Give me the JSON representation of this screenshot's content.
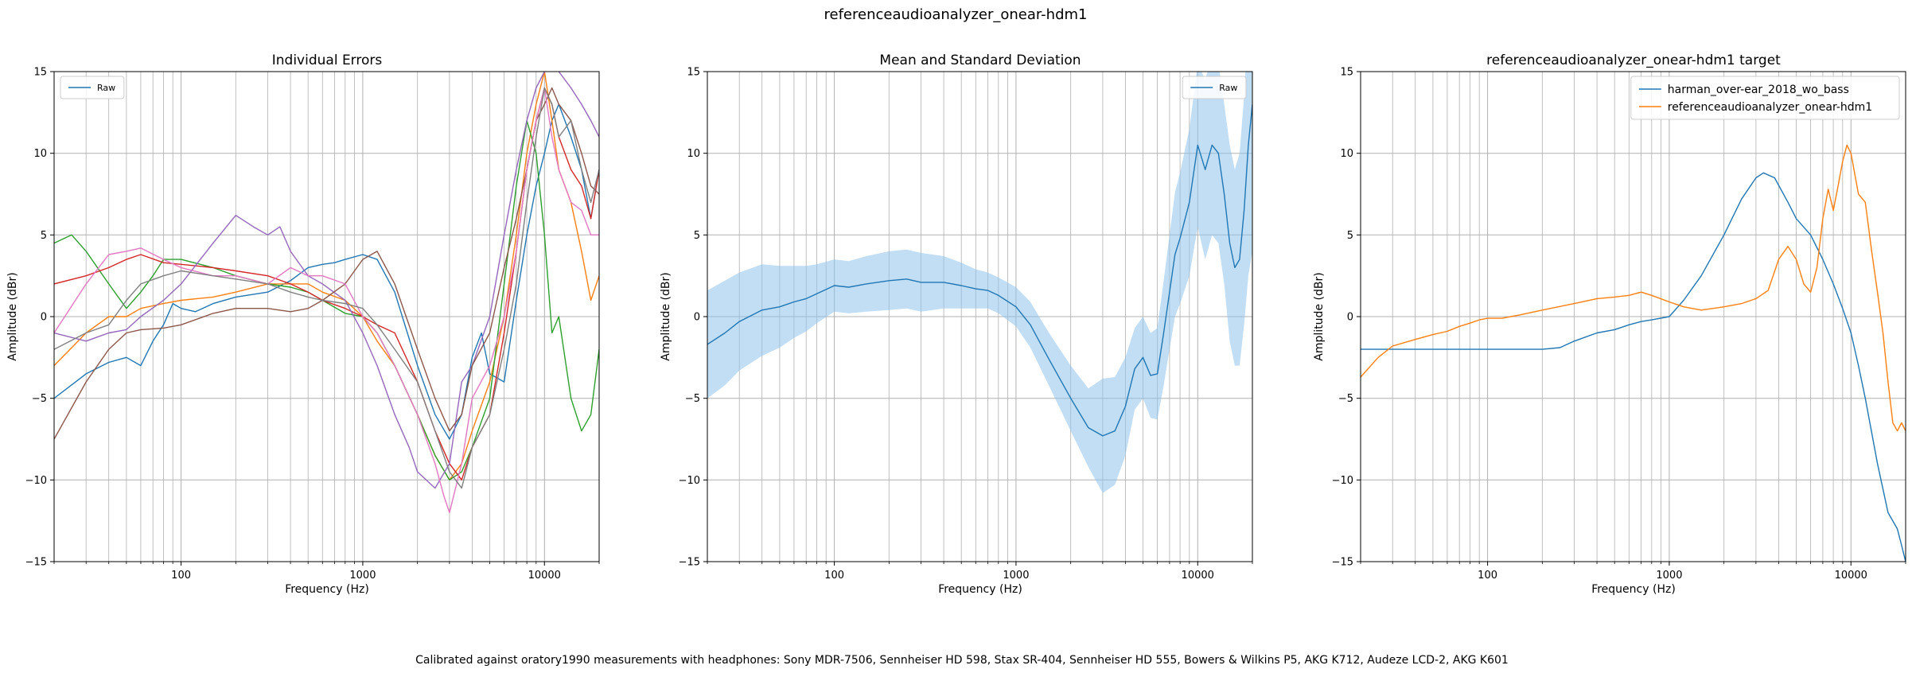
{
  "figure_title": "referenceaudioanalyzer_onear-hdm1",
  "footnote": "Calibrated against oratory1990 measurements with headphones: Sony MDR-7506, Sennheiser HD 598, Stax SR-404, Sennheiser HD 555, Bowers & Wilkins P5, AKG K712, Audeze LCD-2, AKG K601",
  "chart_data": [
    {
      "type": "line",
      "title": "Individual Errors",
      "xlabel": "Frequency (Hz)",
      "ylabel": "Amplitude (dBr)",
      "xscale": "log",
      "xlim": [
        20,
        20000
      ],
      "ylim": [
        -15,
        15
      ],
      "xticks": [
        {
          "value": 100,
          "label": "100"
        },
        {
          "value": 1000,
          "label": "1000"
        },
        {
          "value": 10000,
          "label": "10000"
        }
      ],
      "yticks": [
        -15,
        -10,
        -5,
        0,
        5,
        10,
        15
      ],
      "grid": true,
      "legend": {
        "position": "upper-left",
        "entries": [
          {
            "label": "Raw",
            "color": "#1f77b4"
          }
        ]
      },
      "series": [
        {
          "color": "#1f77b4",
          "x": [
            20,
            30,
            40,
            50,
            60,
            70,
            80,
            90,
            100,
            120,
            150,
            200,
            300,
            400,
            500,
            600,
            700,
            800,
            1000,
            1200,
            1500,
            2000,
            2500,
            3000,
            3500,
            4000,
            4500,
            5000,
            6000,
            7000,
            8000,
            9000,
            10000,
            11000,
            12000,
            14000,
            16000,
            18000,
            20000
          ],
          "y": [
            -5,
            -3.5,
            -2.8,
            -2.5,
            -3,
            -1.5,
            -0.5,
            0.8,
            0.5,
            0.3,
            0.8,
            1.2,
            1.5,
            2.2,
            3,
            3.2,
            3.3,
            3.5,
            3.8,
            3.5,
            1.5,
            -3,
            -6,
            -7.5,
            -6,
            -2.5,
            -1,
            -3.5,
            -4,
            1,
            5,
            8,
            10,
            12,
            13,
            11,
            9,
            6,
            9
          ]
        },
        {
          "color": "#ff7f0e",
          "x": [
            20,
            30,
            40,
            50,
            60,
            80,
            100,
            150,
            200,
            300,
            400,
            500,
            600,
            800,
            1000,
            1200,
            1500,
            2000,
            2500,
            3000,
            3500,
            4000,
            5000,
            6000,
            7000,
            8000,
            9000,
            10000,
            11000,
            12000,
            14000,
            16000,
            18000,
            20000
          ],
          "y": [
            -3,
            -1,
            0,
            0,
            0.5,
            0.8,
            1,
            1.2,
            1.5,
            2,
            2,
            2,
            1.5,
            1,
            0,
            -1.5,
            -3,
            -6,
            -8.5,
            -10,
            -9,
            -7,
            -4,
            0,
            5,
            10,
            13,
            15,
            12,
            9,
            7,
            4,
            1,
            2.5
          ]
        },
        {
          "color": "#2ca02c",
          "x": [
            20,
            25,
            30,
            40,
            50,
            60,
            70,
            80,
            100,
            150,
            200,
            300,
            400,
            500,
            600,
            800,
            1000,
            1200,
            1500,
            2000,
            2500,
            3000,
            3500,
            4000,
            5000,
            6000,
            7000,
            8000,
            9000,
            10000,
            11000,
            12000,
            14000,
            16000,
            18000,
            20000
          ],
          "y": [
            4.5,
            5,
            4,
            2,
            0.5,
            1.5,
            2.5,
            3.5,
            3.5,
            3,
            2.5,
            2,
            1.8,
            1.5,
            1,
            0.2,
            0,
            -1,
            -3,
            -6,
            -8.5,
            -10,
            -9.5,
            -8,
            -5,
            2,
            8,
            12,
            10,
            5,
            -1,
            0,
            -5,
            -7,
            -6,
            -2
          ]
        },
        {
          "color": "#d62728",
          "x": [
            20,
            30,
            40,
            50,
            60,
            80,
            100,
            150,
            200,
            300,
            400,
            500,
            600,
            800,
            1000,
            1200,
            1500,
            2000,
            2500,
            3000,
            3500,
            4000,
            5000,
            6000,
            7000,
            8000,
            9000,
            10000,
            11000,
            12000,
            14000,
            16000,
            18000,
            20000
          ],
          "y": [
            2,
            2.5,
            3,
            3.5,
            3.8,
            3.3,
            3.2,
            3,
            2.8,
            2.5,
            2,
            1.5,
            1,
            0.5,
            0,
            -0.5,
            -1,
            -4,
            -7,
            -9,
            -10,
            -8,
            -6,
            -1,
            4,
            9,
            12,
            14,
            13,
            11,
            9,
            8,
            6,
            9
          ]
        },
        {
          "color": "#9467bd",
          "x": [
            20,
            30,
            40,
            50,
            60,
            80,
            100,
            150,
            200,
            250,
            300,
            350,
            400,
            500,
            600,
            800,
            1000,
            1200,
            1500,
            1800,
            2000,
            2500,
            3000,
            3500,
            4000,
            5000,
            6000,
            7000,
            8000,
            9000,
            10000,
            11000,
            12000,
            14000,
            16000,
            18000,
            20000
          ],
          "y": [
            -1,
            -1.5,
            -1,
            -0.8,
            0,
            1,
            2,
            4.5,
            6.2,
            5.5,
            5,
            5.5,
            4,
            2.5,
            2,
            1,
            -1,
            -3,
            -6,
            -8,
            -9.5,
            -10.5,
            -9,
            -4,
            -3,
            0,
            5,
            9,
            12,
            14,
            15,
            16,
            15,
            14,
            13,
            12,
            11
          ]
        },
        {
          "color": "#8c564b",
          "x": [
            20,
            30,
            40,
            50,
            60,
            80,
            100,
            150,
            200,
            300,
            400,
            500,
            600,
            800,
            1000,
            1200,
            1500,
            2000,
            2500,
            3000,
            3500,
            4000,
            5000,
            6000,
            7000,
            8000,
            9000,
            10000,
            11000,
            12000,
            14000,
            16000,
            18000,
            20000
          ],
          "y": [
            -7.5,
            -4,
            -2,
            -1,
            -0.8,
            -0.7,
            -0.5,
            0.2,
            0.5,
            0.5,
            0.3,
            0.5,
            1,
            2,
            3.5,
            4,
            2,
            -2,
            -5,
            -7,
            -6,
            -3,
            -1,
            3,
            6,
            9,
            12,
            13,
            14,
            13,
            12,
            10,
            8,
            7.5
          ]
        },
        {
          "color": "#e377c2",
          "x": [
            20,
            30,
            40,
            50,
            60,
            80,
            100,
            150,
            200,
            300,
            400,
            500,
            600,
            800,
            1000,
            1200,
            1500,
            2000,
            2500,
            2800,
            3000,
            3500,
            4000,
            5000,
            6000,
            7000,
            8000,
            9000,
            10000,
            11000,
            12000,
            14000,
            16000,
            18000,
            20000
          ],
          "y": [
            -1,
            2,
            3.8,
            4,
            4.2,
            3.5,
            3,
            2.5,
            2.5,
            2,
            3,
            2.5,
            2.5,
            2,
            0,
            -1,
            -3,
            -6,
            -9,
            -11,
            -12,
            -9,
            -5,
            -3,
            0,
            4,
            9,
            12,
            14,
            11,
            9,
            7,
            6.5,
            5,
            5
          ]
        },
        {
          "color": "#7f7f7f",
          "x": [
            20,
            30,
            40,
            50,
            60,
            80,
            100,
            150,
            200,
            300,
            400,
            500,
            600,
            800,
            1000,
            1200,
            1500,
            2000,
            2500,
            3000,
            3500,
            4000,
            5000,
            6000,
            7000,
            8000,
            9000,
            10000,
            11000,
            12000,
            14000,
            16000,
            18000,
            20000
          ],
          "y": [
            -2,
            -1,
            -0.5,
            1,
            2,
            2.5,
            2.8,
            2.5,
            2.3,
            2,
            1.5,
            1.2,
            1,
            0.8,
            0.5,
            -0.5,
            -2,
            -4,
            -7,
            -9.5,
            -10.5,
            -8,
            -6,
            -2,
            2,
            7,
            11,
            14,
            13,
            11,
            12,
            9,
            7,
            9
          ]
        }
      ]
    },
    {
      "type": "line",
      "title": "Mean and Standard Deviation",
      "xlabel": "Frequency (Hz)",
      "ylabel": "Amplitude (dBr)",
      "xscale": "log",
      "xlim": [
        20,
        20000
      ],
      "ylim": [
        -15,
        15
      ],
      "xticks": [
        {
          "value": 100,
          "label": "100"
        },
        {
          "value": 1000,
          "label": "1000"
        },
        {
          "value": 10000,
          "label": "10000"
        }
      ],
      "yticks": [
        -15,
        -10,
        -5,
        0,
        5,
        10,
        15
      ],
      "grid": true,
      "legend": {
        "position": "upper-right",
        "entries": [
          {
            "label": "Raw",
            "color": "#1f77b4"
          }
        ]
      },
      "series": [
        {
          "color": "#1f77b4",
          "x": [
            20,
            25,
            30,
            40,
            50,
            60,
            70,
            80,
            100,
            120,
            150,
            200,
            250,
            300,
            400,
            500,
            600,
            700,
            800,
            1000,
            1200,
            1500,
            2000,
            2500,
            3000,
            3500,
            4000,
            4500,
            5000,
            5500,
            6000,
            6500,
            7000,
            7500,
            8000,
            9000,
            10000,
            11000,
            12000,
            13000,
            14000,
            15000,
            16000,
            17000,
            18000,
            19000,
            20000
          ],
          "y": [
            -1.7,
            -1,
            -0.3,
            0.4,
            0.6,
            0.9,
            1.1,
            1.4,
            1.9,
            1.8,
            2,
            2.2,
            2.3,
            2.1,
            2.1,
            1.9,
            1.7,
            1.6,
            1.3,
            0.6,
            -0.5,
            -2.5,
            -5,
            -6.8,
            -7.3,
            -7,
            -5.5,
            -3.2,
            -2.5,
            -3.6,
            -3.5,
            -1,
            1.5,
            3.8,
            4.8,
            7,
            10.5,
            9,
            10.5,
            10,
            7.5,
            4.5,
            3,
            3.5,
            6.5,
            10.5,
            13
          ],
          "std": [
            3.3,
            3.2,
            3,
            2.8,
            2.5,
            2.2,
            2,
            1.8,
            1.6,
            1.6,
            1.7,
            1.8,
            1.8,
            1.8,
            1.6,
            1.4,
            1.2,
            1.1,
            1.1,
            1.2,
            1.4,
            1.6,
            2,
            2.4,
            3.5,
            3.3,
            3,
            2.5,
            2.5,
            2.6,
            2.8,
            3.2,
            3.5,
            3.8,
            4,
            4.5,
            5,
            5.5,
            5.5,
            5.5,
            5.5,
            6,
            6,
            6.5,
            7,
            8,
            9
          ]
        }
      ]
    },
    {
      "type": "line",
      "title": "referenceaudioanalyzer_onear-hdm1 target",
      "xlabel": "Frequency (Hz)",
      "ylabel": "Amplitude (dBr)",
      "xscale": "log",
      "xlim": [
        20,
        20000
      ],
      "ylim": [
        -15,
        15
      ],
      "xticks": [
        {
          "value": 100,
          "label": "100"
        },
        {
          "value": 1000,
          "label": "1000"
        },
        {
          "value": 10000,
          "label": "10000"
        }
      ],
      "yticks": [
        -15,
        -10,
        -5,
        0,
        5,
        10,
        15
      ],
      "grid": true,
      "legend": {
        "position": "upper-right",
        "entries": [
          {
            "label": "harman_over-ear_2018_wo_bass",
            "color": "#1f77b4"
          },
          {
            "label": "referenceaudioanalyzer_onear-hdm1",
            "color": "#ff7f0e"
          }
        ]
      },
      "series": [
        {
          "name": "harman_over-ear_2018_wo_bass",
          "color": "#1f77b4",
          "x": [
            20,
            100,
            200,
            250,
            300,
            400,
            500,
            600,
            700,
            800,
            1000,
            1200,
            1500,
            2000,
            2500,
            3000,
            3300,
            3800,
            4500,
            5000,
            6000,
            7000,
            8000,
            9000,
            10000,
            11000,
            12000,
            14000,
            16000,
            18000,
            19000,
            20000
          ],
          "y": [
            -2,
            -2,
            -2,
            -1.9,
            -1.5,
            -1,
            -0.8,
            -0.5,
            -0.3,
            -0.2,
            0,
            1,
            2.5,
            5,
            7.2,
            8.5,
            8.8,
            8.5,
            7,
            6,
            5,
            3.5,
            2,
            0.5,
            -1,
            -3,
            -5,
            -9,
            -12,
            -13,
            -14,
            -15
          ]
        },
        {
          "name": "referenceaudioanalyzer_onear-hdm1",
          "color": "#ff7f0e",
          "x": [
            20,
            25,
            30,
            40,
            50,
            60,
            70,
            80,
            90,
            100,
            120,
            150,
            200,
            300,
            400,
            500,
            600,
            700,
            800,
            1000,
            1200,
            1500,
            2000,
            2500,
            3000,
            3500,
            4000,
            4500,
            5000,
            5500,
            6000,
            6500,
            7000,
            7500,
            8000,
            8500,
            9000,
            9500,
            10000,
            11000,
            12000,
            13000,
            14000,
            15000,
            16000,
            17000,
            18000,
            19000,
            20000
          ],
          "y": [
            -3.7,
            -2.5,
            -1.8,
            -1.4,
            -1.1,
            -0.9,
            -0.6,
            -0.4,
            -0.2,
            -0.1,
            -0.1,
            0.1,
            0.4,
            0.8,
            1.1,
            1.2,
            1.3,
            1.5,
            1.3,
            0.9,
            0.6,
            0.4,
            0.6,
            0.8,
            1.1,
            1.6,
            3.5,
            4.3,
            3.5,
            2,
            1.5,
            3,
            6,
            7.8,
            6.5,
            8,
            9.5,
            10.5,
            10,
            7.5,
            7,
            4,
            1.5,
            -1,
            -4,
            -6.5,
            -7,
            -6.5,
            -7
          ]
        }
      ]
    }
  ]
}
